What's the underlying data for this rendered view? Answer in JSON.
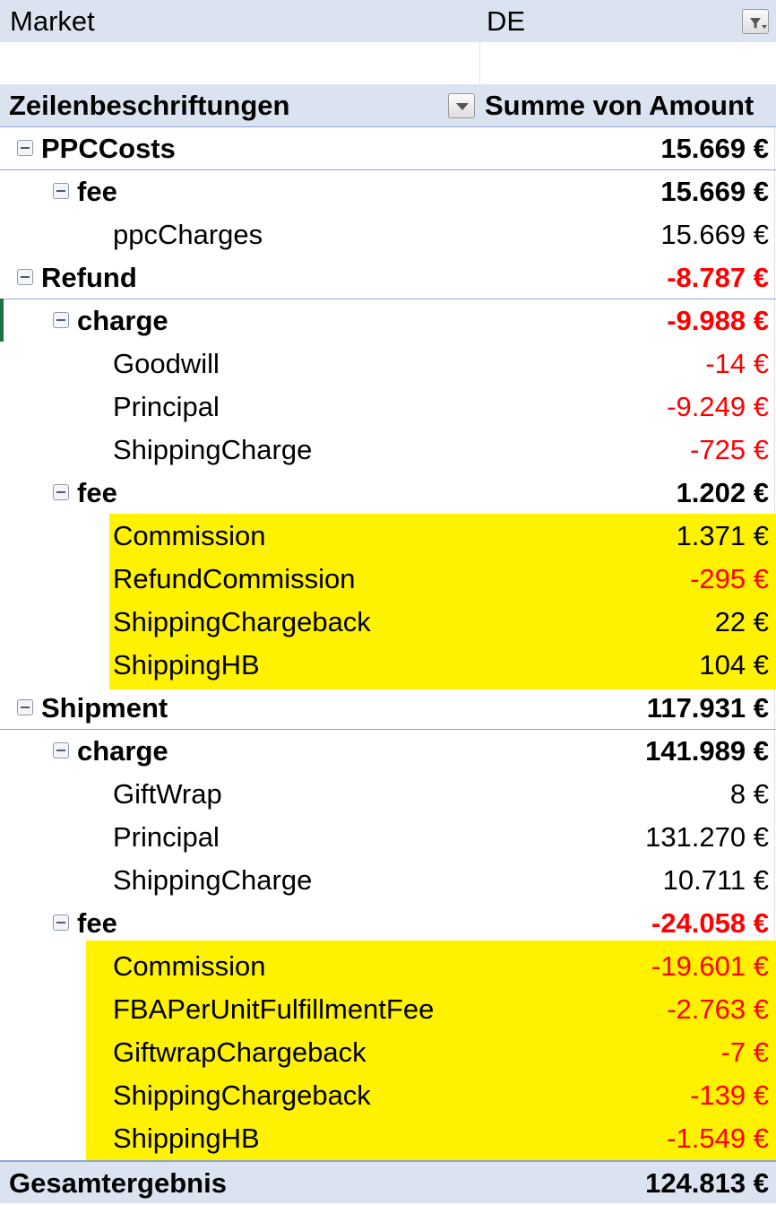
{
  "filter": {
    "field": "Market",
    "value": "DE"
  },
  "header": {
    "row_labels": "Zeilenbeschriftungen",
    "values_label": "Summe von Amount"
  },
  "rows": [
    {
      "label": "PPCCosts",
      "value": "15.669 €"
    },
    {
      "label": "fee",
      "value": "15.669 €"
    },
    {
      "label": "ppcCharges",
      "value": "15.669 €"
    },
    {
      "label": "Refund",
      "value": "-8.787 €"
    },
    {
      "label": "charge",
      "value": "-9.988 €"
    },
    {
      "label": "Goodwill",
      "value": "-14 €"
    },
    {
      "label": "Principal",
      "value": "-9.249 €"
    },
    {
      "label": "ShippingCharge",
      "value": "-725 €"
    },
    {
      "label": "fee",
      "value": "1.202 €"
    },
    {
      "label": "Commission",
      "value": "1.371 €"
    },
    {
      "label": "RefundCommission",
      "value": "-295 €"
    },
    {
      "label": "ShippingChargeback",
      "value": "22 €"
    },
    {
      "label": "ShippingHB",
      "value": "104 €"
    },
    {
      "label": "Shipment",
      "value": "117.931 €"
    },
    {
      "label": "charge",
      "value": "141.989 €"
    },
    {
      "label": "GiftWrap",
      "value": "8 €"
    },
    {
      "label": "Principal",
      "value": "131.270 €"
    },
    {
      "label": "ShippingCharge",
      "value": "10.711 €"
    },
    {
      "label": "fee",
      "value": "-24.058 €"
    },
    {
      "label": "Commission",
      "value": "-19.601 €"
    },
    {
      "label": "FBAPerUnitFulfillmentFee",
      "value": "-2.763 €"
    },
    {
      "label": "GiftwrapChargeback",
      "value": "-7 €"
    },
    {
      "label": "ShippingChargeback",
      "value": "-139 €"
    },
    {
      "label": "ShippingHB",
      "value": "-1.549 €"
    }
  ],
  "total": {
    "label": "Gesamtergebnis",
    "value": "124.813 €"
  },
  "colors": {
    "header_bg": "#dbe3f1",
    "highlight": "#fff200",
    "negative": "#ff0000",
    "border": "#8ea6cf"
  }
}
